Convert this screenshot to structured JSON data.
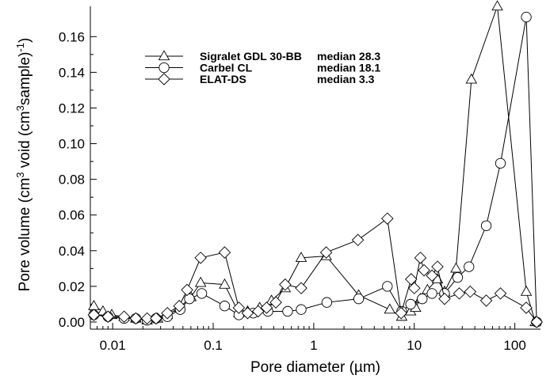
{
  "chart_data": {
    "type": "line",
    "xscale": "log",
    "xlabel": "Pore diameter (µm)",
    "ylabel_parts": [
      "Pore volume (cm",
      "3",
      " void (cm",
      "3",
      "sample)",
      "-1",
      ")"
    ],
    "xlim": [
      0.006,
      180
    ],
    "ylim": [
      -0.004,
      0.177
    ],
    "x_ticks": [
      0.01,
      0.1,
      1,
      10,
      100
    ],
    "x_tick_labels": [
      "0.01",
      "0.1",
      "1",
      "10",
      "100"
    ],
    "y_ticks": [
      0,
      0.02,
      0.04,
      0.06,
      0.08,
      0.1,
      0.12,
      0.14,
      0.16
    ],
    "y_tick_labels": [
      "0.00",
      "0.02",
      "0.04",
      "0.06",
      "0.08",
      "0.10",
      "0.12",
      "0.14",
      "0.16"
    ],
    "legend_position": "top-left",
    "grid": false,
    "series": [
      {
        "name": "Sigralet GDL 30-BB",
        "median_label": "median 28.3",
        "marker": "triangle",
        "points": [
          [
            0.0065,
            0.009
          ],
          [
            0.008,
            0.006
          ],
          [
            0.0098,
            0.004
          ],
          [
            0.013,
            0.003
          ],
          [
            0.017,
            0.002
          ],
          [
            0.022,
            0.001
          ],
          [
            0.028,
            0.002
          ],
          [
            0.035,
            0.004
          ],
          [
            0.046,
            0.008
          ],
          [
            0.06,
            0.014
          ],
          [
            0.075,
            0.022
          ],
          [
            0.13,
            0.021
          ],
          [
            0.18,
            0.005
          ],
          [
            0.22,
            0.006
          ],
          [
            0.29,
            0.008
          ],
          [
            0.38,
            0.012
          ],
          [
            0.52,
            0.019
          ],
          [
            0.75,
            0.036
          ],
          [
            1.33,
            0.037
          ],
          [
            2.8,
            0.015
          ],
          [
            5.7,
            0.007
          ],
          [
            7.5,
            0.003
          ],
          [
            9.2,
            0.006
          ],
          [
            10.3,
            0.008
          ],
          [
            11.5,
            0.013
          ],
          [
            13.5,
            0.018
          ],
          [
            17,
            0.024
          ],
          [
            20,
            0.017
          ],
          [
            26,
            0.03
          ],
          [
            37,
            0.136
          ],
          [
            67,
            0.177
          ],
          [
            130,
            0.017
          ],
          [
            160,
            0.0
          ]
        ]
      },
      {
        "name": "Carbel CL",
        "median_label": "median 18.1",
        "marker": "circle",
        "points": [
          [
            0.0065,
            0.004
          ],
          [
            0.009,
            0.003
          ],
          [
            0.013,
            0.002
          ],
          [
            0.017,
            0.002
          ],
          [
            0.022,
            0.001
          ],
          [
            0.027,
            0.002
          ],
          [
            0.035,
            0.003
          ],
          [
            0.047,
            0.007
          ],
          [
            0.058,
            0.013
          ],
          [
            0.077,
            0.016
          ],
          [
            0.13,
            0.009
          ],
          [
            0.18,
            0.004
          ],
          [
            0.25,
            0.005
          ],
          [
            0.35,
            0.006
          ],
          [
            0.55,
            0.006
          ],
          [
            0.75,
            0.007
          ],
          [
            1.35,
            0.011
          ],
          [
            2.8,
            0.013
          ],
          [
            5.4,
            0.02
          ],
          [
            7.5,
            0.006
          ],
          [
            9.2,
            0.01
          ],
          [
            12,
            0.013
          ],
          [
            15,
            0.016
          ],
          [
            20,
            0.016
          ],
          [
            27,
            0.025
          ],
          [
            35,
            0.031
          ],
          [
            52,
            0.054
          ],
          [
            72,
            0.089
          ],
          [
            130,
            0.171
          ],
          [
            165,
            0.0
          ]
        ]
      },
      {
        "name": "ELAT-DS",
        "median_label": "median 3.3",
        "marker": "diamond",
        "points": [
          [
            0.0065,
            0.004
          ],
          [
            0.009,
            0.003
          ],
          [
            0.013,
            0.003
          ],
          [
            0.017,
            0.002
          ],
          [
            0.022,
            0.002
          ],
          [
            0.027,
            0.002
          ],
          [
            0.035,
            0.005
          ],
          [
            0.046,
            0.009
          ],
          [
            0.055,
            0.018
          ],
          [
            0.075,
            0.036
          ],
          [
            0.13,
            0.039
          ],
          [
            0.18,
            0.008
          ],
          [
            0.22,
            0.005
          ],
          [
            0.28,
            0.006
          ],
          [
            0.34,
            0.008
          ],
          [
            0.42,
            0.011
          ],
          [
            0.52,
            0.021
          ],
          [
            0.75,
            0.019
          ],
          [
            1.33,
            0.039
          ],
          [
            2.75,
            0.046
          ],
          [
            5.4,
            0.058
          ],
          [
            7.4,
            0.005
          ],
          [
            9.3,
            0.024
          ],
          [
            10,
            0.019
          ],
          [
            11.5,
            0.036
          ],
          [
            12.5,
            0.029
          ],
          [
            15,
            0.026
          ],
          [
            17,
            0.031
          ],
          [
            20,
            0.013
          ],
          [
            28,
            0.016
          ],
          [
            36,
            0.017
          ],
          [
            52,
            0.012
          ],
          [
            72,
            0.016
          ],
          [
            130,
            0.008
          ],
          [
            165,
            0.0
          ]
        ]
      }
    ]
  }
}
